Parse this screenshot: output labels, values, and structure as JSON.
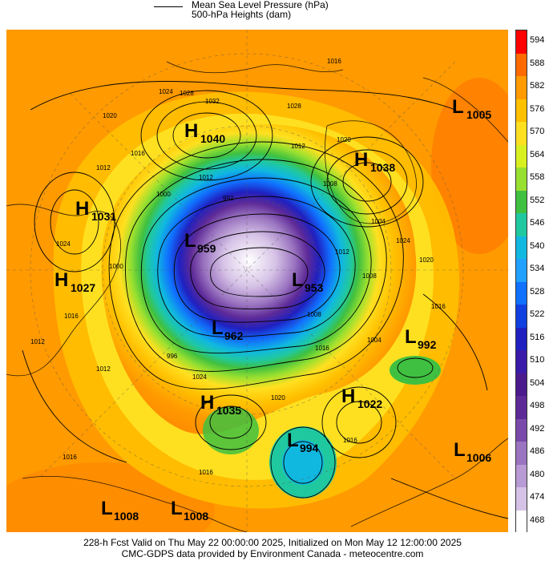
{
  "legend": {
    "line1": "Mean Sea Level Pressure (hPa)",
    "line2": "500-hPa Heights (dam)"
  },
  "colorbar": {
    "labels": [
      "594",
      "588",
      "582",
      "576",
      "570",
      "564",
      "558",
      "552",
      "546",
      "540",
      "534",
      "528",
      "522",
      "516",
      "510",
      "504",
      "498",
      "492",
      "486",
      "480",
      "474",
      "468"
    ],
    "colors": [
      "#ff0000",
      "#ff6a00",
      "#ff9a00",
      "#ffc000",
      "#ffe020",
      "#d8f020",
      "#98e030",
      "#40c040",
      "#20c8a0",
      "#10b8e0",
      "#20a0ff",
      "#1070ff",
      "#1040e0",
      "#2020c0",
      "#3a1aa8",
      "#4b1a8c",
      "#5e2a98",
      "#7a4aaa",
      "#9a74c0",
      "#b89ad4",
      "#d6c2e6",
      "#ffffff"
    ]
  },
  "systems": [
    {
      "id": "h1040",
      "type": "H",
      "value": "1040"
    },
    {
      "id": "h1038",
      "type": "H",
      "value": "1038"
    },
    {
      "id": "l1005",
      "type": "L",
      "value": "1005"
    },
    {
      "id": "h1031",
      "type": "H",
      "value": "1031"
    },
    {
      "id": "h1027",
      "type": "H",
      "value": "1027"
    },
    {
      "id": "l959",
      "type": "L",
      "value": "959"
    },
    {
      "id": "l953",
      "type": "L",
      "value": "953"
    },
    {
      "id": "l962",
      "type": "L",
      "value": "962"
    },
    {
      "id": "l992",
      "type": "L",
      "value": "992"
    },
    {
      "id": "h1035",
      "type": "H",
      "value": "1035"
    },
    {
      "id": "h1022",
      "type": "H",
      "value": "1022"
    },
    {
      "id": "l994",
      "type": "L",
      "value": "994"
    },
    {
      "id": "l1006",
      "type": "L",
      "value": "1006"
    },
    {
      "id": "l1008a",
      "type": "L",
      "value": "1008"
    },
    {
      "id": "l1008b",
      "type": "L",
      "value": "1008"
    }
  ],
  "isobar_labels": [
    "1016",
    "1024",
    "1028",
    "1032",
    "1020",
    "1016",
    "1012",
    "1020",
    "1028",
    "1012",
    "1008",
    "1012",
    "992",
    "1000",
    "1004",
    "1024",
    "1016",
    "1020",
    "1008",
    "1012",
    "1000",
    "1024",
    "1016",
    "1012",
    "1004",
    "1008",
    "996",
    "1012",
    "1024",
    "1020",
    "1016",
    "1016",
    "1016",
    "1016"
  ],
  "footer": {
    "line1": "228-h Fcst Valid on Thu May 22 00:00:00 2025, Initialized on Mon May 12 12:00:00 2025",
    "line2": "CMC-GDPS data provided by Environment Canada - meteocentre.com"
  }
}
